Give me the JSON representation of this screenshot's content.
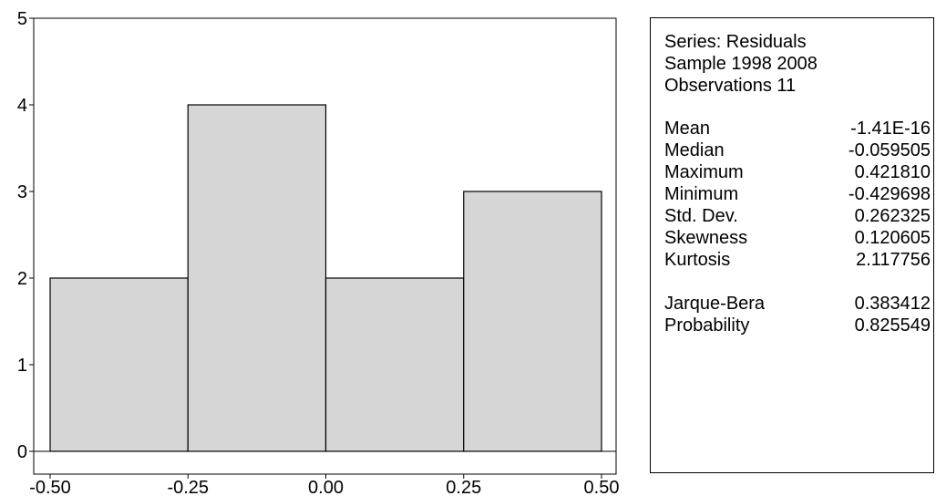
{
  "chart_data": {
    "type": "bar",
    "subtype": "histogram",
    "bins": [
      {
        "from": -0.5,
        "to": -0.25,
        "count": 2
      },
      {
        "from": -0.25,
        "to": 0.0,
        "count": 4
      },
      {
        "from": 0.0,
        "to": 0.25,
        "count": 2
      },
      {
        "from": 0.25,
        "to": 0.5,
        "count": 3
      }
    ],
    "x_ticks": [
      "-0.50",
      "-0.25",
      "0.00",
      "0.25",
      "0.50"
    ],
    "y_ticks": [
      "0",
      "1",
      "2",
      "3",
      "4",
      "5"
    ],
    "xlim": [
      -0.5,
      0.5
    ],
    "ylim": [
      0,
      5
    ],
    "title": "",
    "xlabel": "",
    "ylabel": "",
    "grid": false,
    "legend": "none",
    "bar_fill": "#d6d6d6",
    "bar_stroke": "#000000"
  },
  "stats": {
    "header": [
      "Series: Residuals",
      "Sample 1998 2008",
      "Observations 11"
    ],
    "rows": [
      {
        "label": "Mean",
        "value": "-1.41E-16"
      },
      {
        "label": "Median",
        "value": "-0.059505"
      },
      {
        "label": "Maximum",
        "value": "0.421810"
      },
      {
        "label": "Minimum",
        "value": "-0.429698"
      },
      {
        "label": "Std. Dev.",
        "value": "0.262325"
      },
      {
        "label": "Skewness",
        "value": "0.120605"
      },
      {
        "label": "Kurtosis",
        "value": "2.117756"
      }
    ],
    "test_rows": [
      {
        "label": "Jarque-Bera",
        "value": "0.383412"
      },
      {
        "label": "Probability",
        "value": "0.825549"
      }
    ]
  }
}
